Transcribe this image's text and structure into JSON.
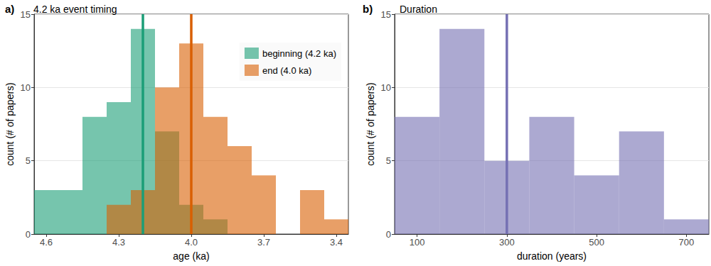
{
  "chart_data": [
    {
      "type": "histogram",
      "panel_label": "a)",
      "title": "4.2 ka event timing",
      "xlabel": "age (ka)",
      "ylabel": "count (# of papers)",
      "bins": [
        4.65,
        4.55,
        4.45,
        4.35,
        4.25,
        4.15,
        4.05,
        3.95,
        3.85,
        3.75,
        3.65,
        3.55,
        3.45,
        3.35
      ],
      "series": [
        {
          "name": "beginning (4.2 ka)",
          "color": "#1b9e77",
          "reference_line": 4.2,
          "values": [
            3,
            3,
            8,
            9,
            14,
            7,
            2,
            1,
            0,
            0,
            0,
            0,
            0
          ]
        },
        {
          "name": "end (4.0 ka)",
          "color": "#d95f02",
          "reference_line": 4.0,
          "values": [
            0,
            0,
            0,
            2,
            3,
            10,
            13,
            8,
            6,
            4,
            0,
            3,
            1
          ]
        }
      ],
      "xlim": [
        4.65,
        3.35
      ],
      "xticks": [
        4.6,
        4.3,
        {
          "value": 4.0,
          "label": "4.0"
        },
        3.7,
        3.4
      ],
      "ylim": [
        0,
        15
      ],
      "yticks": [
        0,
        5,
        10,
        15
      ],
      "grid": true,
      "legend": "upper right"
    },
    {
      "type": "histogram",
      "panel_label": "b)",
      "title": "Duration",
      "xlabel": "duration (years)",
      "ylabel": "count (# of papers)",
      "bins": [
        50,
        150,
        250,
        350,
        450,
        550,
        650,
        750
      ],
      "series": [
        {
          "name": "duration",
          "color": "#7570b3",
          "reference_line": 300,
          "values": [
            8,
            14,
            5,
            8,
            4,
            7,
            1
          ]
        }
      ],
      "xlim": [
        50,
        750
      ],
      "xticks": [
        100,
        300,
        500,
        700
      ],
      "ylim": [
        0,
        15
      ],
      "yticks": [
        0,
        5,
        10,
        15
      ],
      "grid": true
    }
  ]
}
